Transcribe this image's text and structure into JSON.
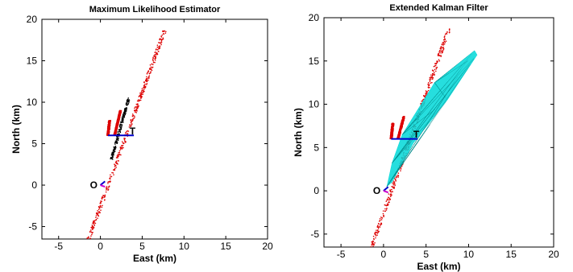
{
  "chart_data": [
    {
      "type": "scatter",
      "title": "Maximum Likelihood Estimator",
      "xlabel": "East (km)",
      "ylabel": "North (km)",
      "xlim": [
        -7,
        20
      ],
      "ylim": [
        -6.5,
        20
      ],
      "xticks": [
        -5,
        0,
        5,
        10,
        15,
        20
      ],
      "yticks": [
        -5,
        0,
        5,
        10,
        15,
        20
      ],
      "grid": false,
      "annotations": [
        {
          "text": "O",
          "x": -0.35,
          "y": 0
        },
        {
          "text": "T",
          "x": 4.2,
          "y": 6.5
        }
      ],
      "series": [
        {
          "color": "#dd0000",
          "kind": "scatter-band",
          "from": [
            -1.4,
            -6.5
          ],
          "to": [
            7.7,
            18.7
          ],
          "width": 0.22
        },
        {
          "color": "#dd0000",
          "kind": "scatter-band",
          "from": [
            0.9,
            6.0
          ],
          "to": [
            1.1,
            7.8
          ],
          "width": 0.12
        },
        {
          "color": "#dd0000",
          "kind": "scatter-band",
          "from": [
            1.7,
            6.0
          ],
          "to": [
            2.4,
            9.0
          ],
          "width": 0.12
        },
        {
          "color": "#000000",
          "kind": "scatter-band",
          "from": [
            1.3,
            3.0
          ],
          "to": [
            3.4,
            10.5
          ],
          "width": 0.15
        },
        {
          "color": "#0000cc",
          "kind": "line",
          "points": [
            [
              0.9,
              6
            ],
            [
              4,
              6
            ]
          ]
        },
        {
          "color": "#0000cc",
          "kind": "line",
          "points": [
            [
              0,
              0
            ],
            [
              0.55,
              0.45
            ]
          ]
        },
        {
          "color": "#cc00cc",
          "kind": "line",
          "points": [
            [
              0,
              0
            ],
            [
              0.55,
              -0.2
            ]
          ]
        }
      ]
    },
    {
      "type": "scatter",
      "title": "Extended Kalman Filter",
      "xlabel": "East (km)",
      "ylabel": "North (km)",
      "xlim": [
        -7,
        20
      ],
      "ylim": [
        -6.5,
        20
      ],
      "xticks": [
        -5,
        0,
        5,
        10,
        15,
        20
      ],
      "yticks": [
        -5,
        0,
        5,
        10,
        15,
        20
      ],
      "grid": false,
      "annotations": [
        {
          "text": "O",
          "x": -0.35,
          "y": 0
        },
        {
          "text": "T",
          "x": 4.2,
          "y": 6.5
        }
      ],
      "series": [
        {
          "color": "#dd0000",
          "kind": "scatter-band",
          "from": [
            -1.4,
            -6.5
          ],
          "to": [
            7.7,
            18.7
          ],
          "width": 0.22
        },
        {
          "color": "#dd0000",
          "kind": "scatter-band",
          "from": [
            0.9,
            6.0
          ],
          "to": [
            1.1,
            7.8
          ],
          "width": 0.12
        },
        {
          "color": "#dd0000",
          "kind": "scatter-band",
          "from": [
            1.7,
            6.0
          ],
          "to": [
            2.4,
            8.6
          ],
          "width": 0.12
        },
        {
          "color": "#00d8d8",
          "kind": "fan",
          "points": [
            [
              0.4,
              0.5
            ],
            [
              1.0,
              3.2
            ],
            [
              2.2,
              6.5
            ],
            [
              6.0,
              12.5
            ],
            [
              10.7,
              16.2
            ],
            [
              11.0,
              15.7
            ],
            [
              7.5,
              10.5
            ],
            [
              3.5,
              5.5
            ],
            [
              1.0,
              1.0
            ]
          ]
        },
        {
          "color": "#0000cc",
          "kind": "line",
          "points": [
            [
              0.9,
              6
            ],
            [
              4,
              6
            ]
          ]
        },
        {
          "color": "#0000cc",
          "kind": "line",
          "points": [
            [
              0,
              0
            ],
            [
              0.55,
              0.45
            ]
          ]
        },
        {
          "color": "#cc00cc",
          "kind": "line",
          "points": [
            [
              0,
              0
            ],
            [
              0.55,
              -0.2
            ]
          ]
        }
      ]
    }
  ]
}
